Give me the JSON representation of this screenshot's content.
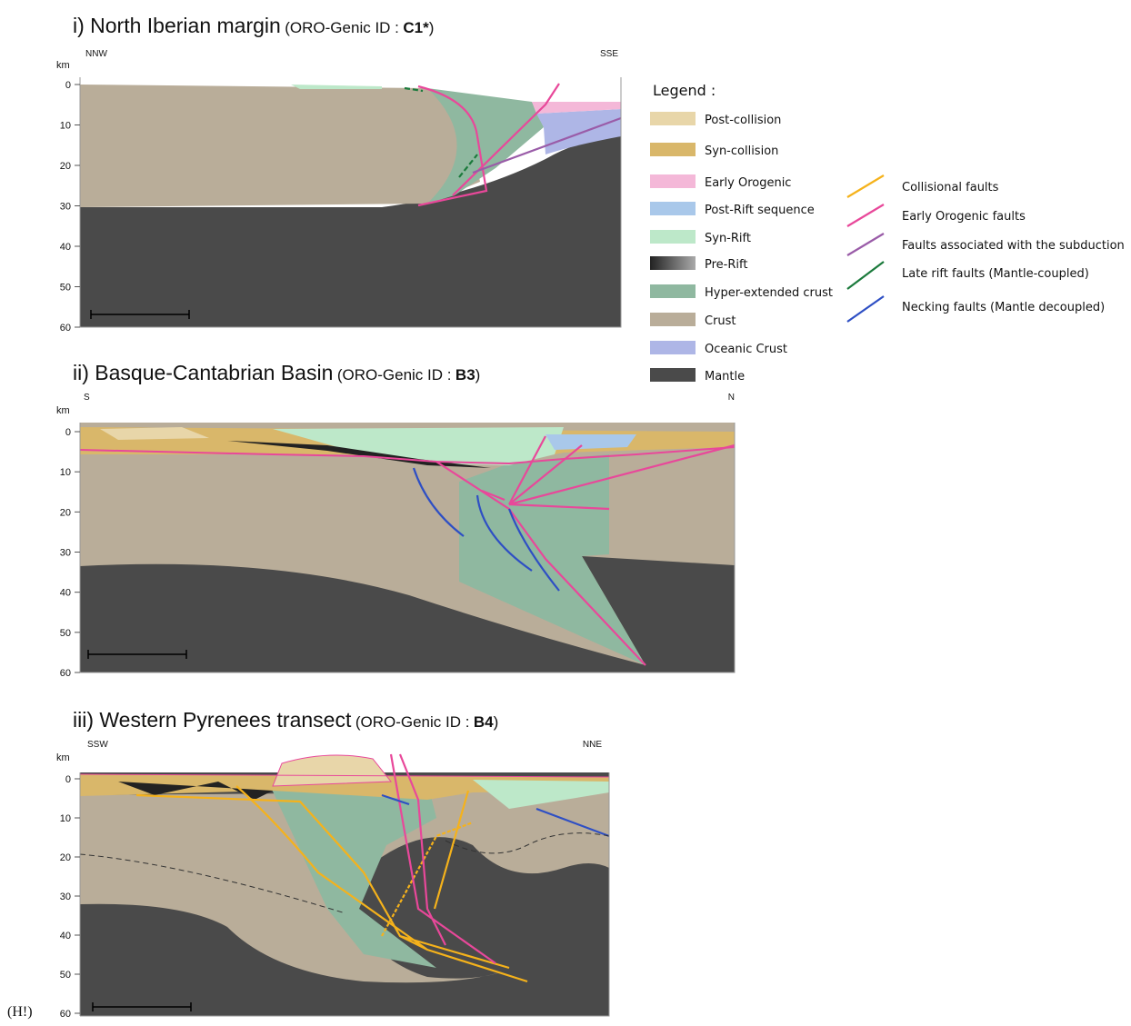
{
  "sections": [
    {
      "title": "i) North Iberian margin",
      "id_label": "(ORO-Genic ID :",
      "id": "C1*",
      "id_close": ")",
      "unit": "km",
      "left_dir": "NNW",
      "right_dir": "SSE",
      "depth_ticks": [
        0,
        10,
        20,
        30,
        40,
        50,
        60
      ]
    },
    {
      "title": "ii) Basque-Cantabrian Basin",
      "id_label": "(ORO-Genic ID :",
      "id": "B3",
      "id_close": ")",
      "unit": "km",
      "left_dir": "S",
      "right_dir": "N",
      "depth_ticks": [
        0,
        10,
        20,
        30,
        40,
        50,
        60
      ]
    },
    {
      "title": "iii) Western Pyrenees transect",
      "id_label": "(ORO-Genic ID :",
      "id": "B4",
      "id_close": ")",
      "unit": "km",
      "left_dir": "SSW",
      "right_dir": "NNE",
      "depth_ticks": [
        0,
        10,
        20,
        30,
        40,
        50,
        60
      ]
    }
  ],
  "legend": {
    "title": "Legend :",
    "units": [
      "Post-collision",
      "Syn-collision",
      "Early Orogenic",
      "Post-Rift sequence",
      "Syn-Rift",
      "Pre-Rift",
      "Hyper-extended crust",
      "Crust",
      "Oceanic Crust",
      "Mantle"
    ],
    "faults": [
      "Collisional faults",
      "Early Orogenic faults",
      "Faults associated with the subduction",
      "Late rift faults (Mantle-coupled)",
      "Necking faults (Mantle decoupled)"
    ]
  },
  "footer": "(H!)"
}
